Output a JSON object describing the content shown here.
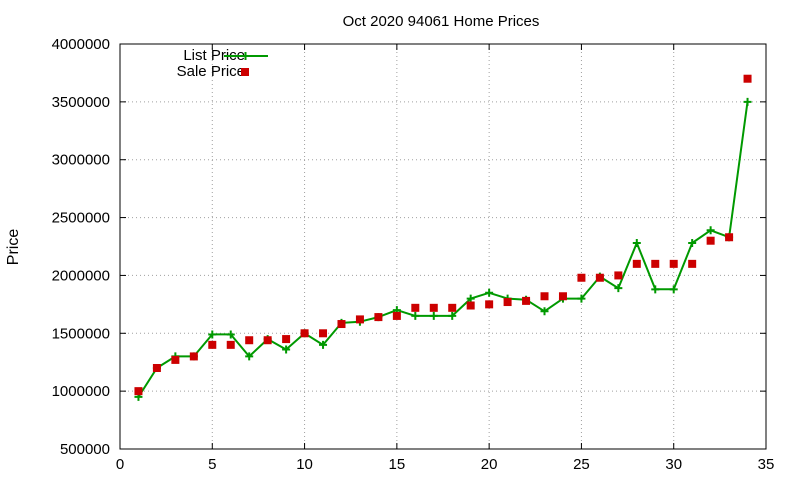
{
  "chart_data": {
    "type": "scatter",
    "title": "Oct 2020 94061 Home Prices",
    "xlabel": "",
    "ylabel": "Price",
    "xlim": [
      0,
      35
    ],
    "ylim": [
      500000,
      4000000
    ],
    "xticks": [
      0,
      5,
      10,
      15,
      20,
      25,
      30,
      35
    ],
    "yticks": [
      500000,
      1000000,
      1500000,
      2000000,
      2500000,
      3000000,
      3500000,
      4000000
    ],
    "grid": true,
    "legend_position": "top-left",
    "series": [
      {
        "name": "List Price",
        "style": "line-with-plus-markers",
        "color": "#009900",
        "x": [
          1,
          2,
          3,
          4,
          5,
          6,
          7,
          8,
          9,
          10,
          11,
          12,
          13,
          14,
          15,
          16,
          17,
          18,
          19,
          20,
          21,
          22,
          23,
          24,
          25,
          26,
          27,
          28,
          29,
          30,
          31,
          32,
          33,
          34
        ],
        "values": [
          950000,
          1200000,
          1300000,
          1300000,
          1490000,
          1490000,
          1300000,
          1450000,
          1360000,
          1500000,
          1400000,
          1590000,
          1600000,
          1640000,
          1700000,
          1650000,
          1650000,
          1650000,
          1800000,
          1850000,
          1800000,
          1790000,
          1690000,
          1800000,
          1800000,
          1990000,
          1890000,
          2280000,
          1880000,
          1880000,
          2280000,
          2390000,
          2330000,
          3500000
        ]
      },
      {
        "name": "Sale Price",
        "style": "square-markers",
        "color": "#cc0000",
        "x": [
          1,
          2,
          3,
          4,
          5,
          6,
          7,
          8,
          9,
          10,
          11,
          12,
          13,
          14,
          15,
          16,
          17,
          18,
          19,
          20,
          21,
          22,
          23,
          24,
          25,
          26,
          27,
          28,
          29,
          30,
          31,
          32,
          33,
          34
        ],
        "values": [
          1000000,
          1200000,
          1270000,
          1300000,
          1400000,
          1400000,
          1440000,
          1440000,
          1450000,
          1500000,
          1500000,
          1580000,
          1620000,
          1640000,
          1650000,
          1720000,
          1720000,
          1720000,
          1740000,
          1750000,
          1770000,
          1780000,
          1820000,
          1820000,
          1980000,
          1980000,
          2000000,
          2100000,
          2100000,
          2100000,
          2100000,
          2300000,
          2330000,
          3700000
        ]
      }
    ]
  }
}
